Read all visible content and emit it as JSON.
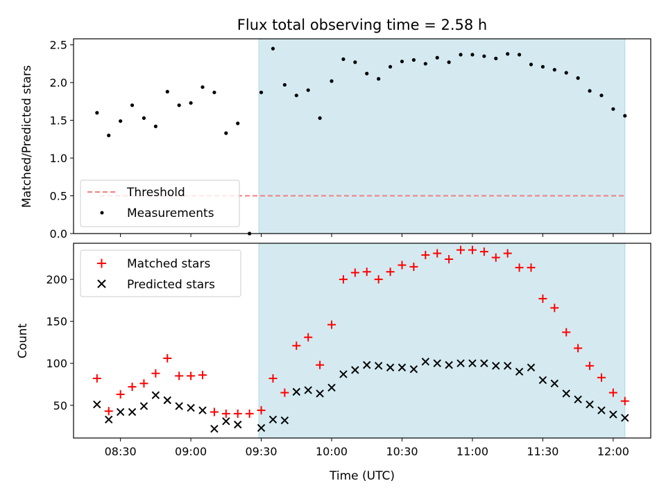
{
  "chart_data": [
    {
      "type": "scatter",
      "title": "Flux total observing time = 2.58 h",
      "xlabel": "",
      "ylabel": "Matched/Predicted stars",
      "xlim": [
        "08:10",
        "12:16"
      ],
      "ylim": [
        0,
        2.58
      ],
      "yticks": [
        "0.0",
        "0.5",
        "1.0",
        "1.5",
        "2.0",
        "2.5"
      ],
      "shaded_region": {
        "start": "09:29",
        "end": "12:05",
        "color": "#d4eaf0"
      },
      "grid": false,
      "legend": {
        "position": "lower-left",
        "entries": [
          {
            "label": "Threshold",
            "style": "dashed-line",
            "color": "#f07f7f"
          },
          {
            "label": "Measurements",
            "style": "dot",
            "color": "#000000"
          }
        ]
      },
      "threshold": 0.5,
      "series": [
        {
          "name": "Measurements",
          "color": "#000000",
          "x": [
            "08:20",
            "08:25",
            "08:30",
            "08:35",
            "08:40",
            "08:45",
            "08:50",
            "08:55",
            "09:00",
            "09:05",
            "09:10",
            "09:15",
            "09:20",
            "09:25",
            "09:30",
            "09:35",
            "09:40",
            "09:45",
            "09:50",
            "09:55",
            "10:00",
            "10:05",
            "10:10",
            "10:15",
            "10:20",
            "10:25",
            "10:30",
            "10:35",
            "10:40",
            "10:45",
            "10:50",
            "10:55",
            "11:00",
            "11:05",
            "11:10",
            "11:15",
            "11:20",
            "11:25",
            "11:30",
            "11:35",
            "11:40",
            "11:45",
            "11:50",
            "11:55",
            "12:00",
            "12:05"
          ],
          "y": [
            1.6,
            1.3,
            1.49,
            1.7,
            1.53,
            1.42,
            1.88,
            1.7,
            1.73,
            1.94,
            1.87,
            1.33,
            1.46,
            0.0,
            1.87,
            2.45,
            1.97,
            1.83,
            1.9,
            1.53,
            2.02,
            2.31,
            2.27,
            2.12,
            2.05,
            2.21,
            2.28,
            2.3,
            2.25,
            2.33,
            2.27,
            2.37,
            2.37,
            2.35,
            2.32,
            2.38,
            2.37,
            2.24,
            2.21,
            2.17,
            2.13,
            2.06,
            1.89,
            1.83,
            1.65,
            1.56
          ]
        }
      ]
    },
    {
      "type": "scatter",
      "title": "",
      "xlabel": "Time (UTC)",
      "ylabel": "Count",
      "xlim": [
        "08:10",
        "12:16"
      ],
      "ylim": [
        11,
        243
      ],
      "xticks": [
        "08:30",
        "09:00",
        "09:30",
        "10:00",
        "10:30",
        "11:00",
        "11:30",
        "12:00"
      ],
      "yticks": [
        "50",
        "100",
        "150",
        "200"
      ],
      "shaded_region": {
        "start": "09:29",
        "end": "12:05",
        "color": "#d4eaf0"
      },
      "grid": false,
      "legend": {
        "position": "top-left"
      },
      "series": [
        {
          "name": "Matched stars",
          "marker": "+",
          "color": "#ff0000",
          "x": [
            "08:20",
            "08:25",
            "08:30",
            "08:35",
            "08:40",
            "08:45",
            "08:50",
            "08:55",
            "09:00",
            "09:05",
            "09:10",
            "09:15",
            "09:20",
            "09:25",
            "09:30",
            "09:35",
            "09:40",
            "09:45",
            "09:50",
            "09:55",
            "10:00",
            "10:05",
            "10:10",
            "10:15",
            "10:20",
            "10:25",
            "10:30",
            "10:35",
            "10:40",
            "10:45",
            "10:50",
            "10:55",
            "11:00",
            "11:05",
            "11:10",
            "11:15",
            "11:20",
            "11:25",
            "11:30",
            "11:35",
            "11:40",
            "11:45",
            "11:50",
            "11:55",
            "12:00",
            "12:05"
          ],
          "y": [
            82,
            43,
            63,
            72,
            76,
            88,
            106,
            85,
            85,
            86,
            42,
            40,
            40,
            40,
            44,
            82,
            65,
            121,
            131,
            98,
            146,
            200,
            208,
            209,
            200,
            209,
            217,
            215,
            229,
            231,
            224,
            235,
            235,
            233,
            226,
            231,
            214,
            214,
            177,
            166,
            137,
            118,
            97,
            83,
            65,
            55
          ]
        },
        {
          "name": "Predicted stars",
          "marker": "x",
          "color": "#000000",
          "x": [
            "08:20",
            "08:25",
            "08:30",
            "08:35",
            "08:40",
            "08:45",
            "08:50",
            "08:55",
            "09:00",
            "09:05",
            "09:10",
            "09:15",
            "09:20",
            "09:30",
            "09:35",
            "09:40",
            "09:45",
            "09:50",
            "09:55",
            "10:00",
            "10:05",
            "10:10",
            "10:15",
            "10:20",
            "10:25",
            "10:30",
            "10:35",
            "10:40",
            "10:45",
            "10:50",
            "10:55",
            "11:00",
            "11:05",
            "11:10",
            "11:15",
            "11:20",
            "11:25",
            "11:30",
            "11:35",
            "11:40",
            "11:45",
            "11:50",
            "11:55",
            "12:00",
            "12:05"
          ],
          "y": [
            51,
            33,
            42,
            42,
            49,
            62,
            56,
            49,
            47,
            44,
            22,
            31,
            27,
            23,
            33,
            32,
            66,
            68,
            64,
            71,
            87,
            92,
            98,
            97,
            95,
            95,
            93,
            102,
            100,
            98,
            100,
            100,
            100,
            97,
            97,
            90,
            95,
            80,
            76,
            64,
            57,
            51,
            44,
            39,
            35
          ]
        }
      ]
    }
  ]
}
